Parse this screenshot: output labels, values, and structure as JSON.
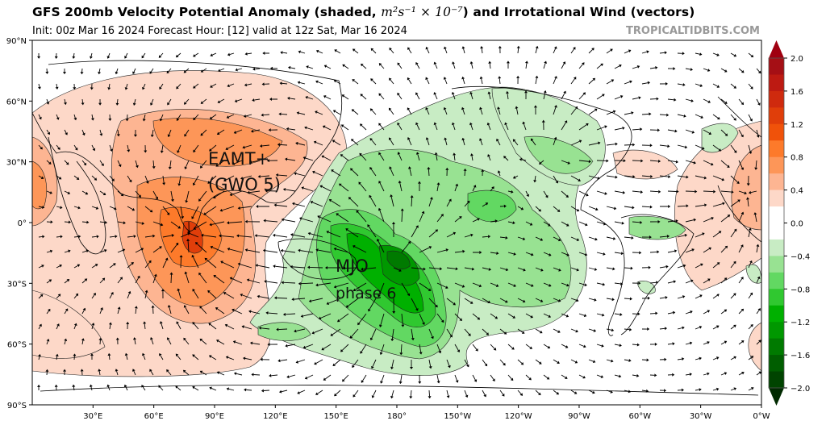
{
  "header": {
    "title_pre": "GFS 200mb Velocity Potential Anomaly (shaded, ",
    "units": "m²s⁻¹ × 10⁻⁷",
    "title_post": ") and Irrotational Wind (vectors)",
    "subtitle": "Init: 00z Mar 16 2024   Forecast Hour: [12]   valid at 12z Sat, Mar 16 2024",
    "brand": "TROPICALTIDBITS.COM"
  },
  "axes": {
    "lat_ticks": [
      "90°N",
      "60°N",
      "30°N",
      "0°",
      "30°S",
      "60°S",
      "90°S"
    ],
    "lon_ticks": [
      "30°E",
      "60°E",
      "90°E",
      "120°E",
      "150°E",
      "180°",
      "150°W",
      "120°W",
      "90°W",
      "60°W",
      "30°W",
      "0°W"
    ]
  },
  "annotations": {
    "eamt": "EAMT+",
    "gwo": "(GWO 5)",
    "mjo": "MJO",
    "phase": "phase 6"
  },
  "colorbar": {
    "tick_labels": [
      "2.0",
      "1.6",
      "1.2",
      "0.8",
      "0.4",
      "0.0",
      "−0.4",
      "−0.8",
      "−1.2",
      "−1.6",
      "−2.0"
    ],
    "colors_top_to_bottom": [
      "#a50f15",
      "#bd1a12",
      "#cf2a0e",
      "#e03e0a",
      "#f0520a",
      "#fd7a2a",
      "#fd9658",
      "#fdb592",
      "#fdd8c8",
      "#ffffff",
      "#ffffff",
      "#c8ecc4",
      "#98e292",
      "#62d862",
      "#30c830",
      "#00b000",
      "#009800",
      "#007a00",
      "#005e00",
      "#004400"
    ],
    "extend_top": "#a00010",
    "extend_bottom": "#002a00"
  }
}
